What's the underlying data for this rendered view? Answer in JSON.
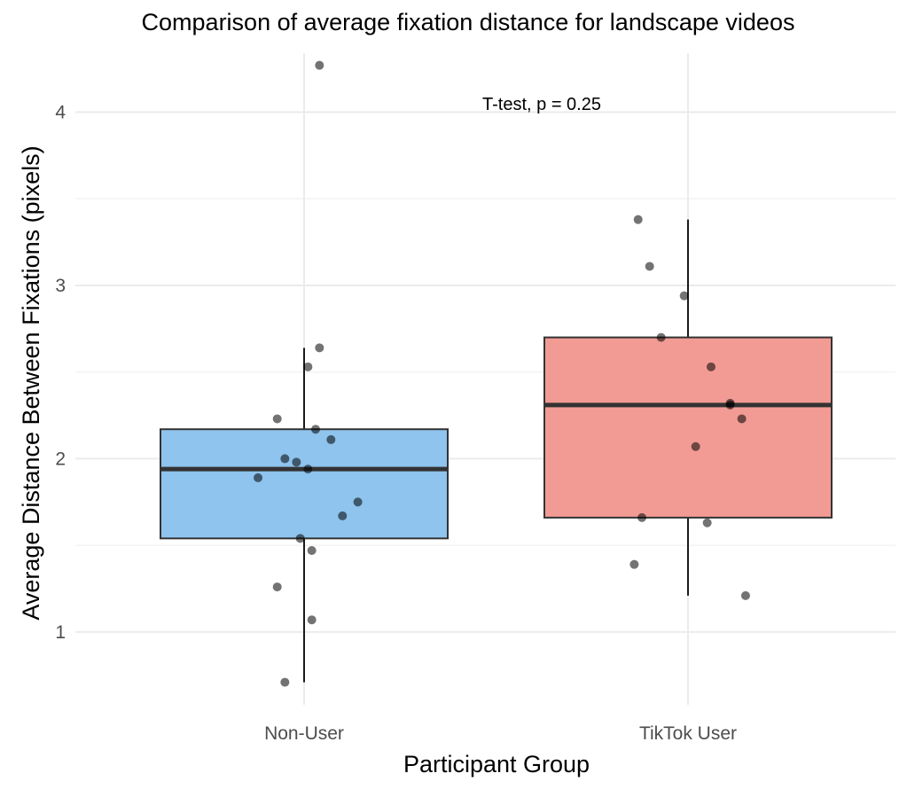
{
  "chart_data": {
    "type": "box",
    "title": "Comparison of average fixation distance for landscape videos",
    "xlabel": "Participant Group",
    "ylabel": "Average Distance Between Fixations (pixels)",
    "categories": [
      "Non-User",
      "TikTok User"
    ],
    "ylim": [
      0.58,
      4.34
    ],
    "yticks": [
      1,
      2,
      3,
      4
    ],
    "grid": true,
    "annotation": "T-test, p = 0.25",
    "colors": {
      "Non-User": "#8ec4ee",
      "TikTok User": "#f29b94"
    },
    "boxes": [
      {
        "category": "Non-User",
        "q1": 1.54,
        "median": 1.94,
        "q3": 2.17,
        "whisker_low": 0.71,
        "whisker_high": 2.64
      },
      {
        "category": "TikTok User",
        "q1": 1.66,
        "median": 2.31,
        "q3": 2.7,
        "whisker_low": 1.21,
        "whisker_high": 3.38
      }
    ],
    "points": [
      {
        "category": "Non-User",
        "jitter": 0.04,
        "y": 4.27
      },
      {
        "category": "Non-User",
        "jitter": 0.04,
        "y": 2.64
      },
      {
        "category": "Non-User",
        "jitter": 0.01,
        "y": 2.53
      },
      {
        "category": "Non-User",
        "jitter": -0.07,
        "y": 2.23
      },
      {
        "category": "Non-User",
        "jitter": 0.03,
        "y": 2.17
      },
      {
        "category": "Non-User",
        "jitter": 0.07,
        "y": 2.11
      },
      {
        "category": "Non-User",
        "jitter": -0.05,
        "y": 2.0
      },
      {
        "category": "Non-User",
        "jitter": -0.02,
        "y": 1.98
      },
      {
        "category": "Non-User",
        "jitter": 0.01,
        "y": 1.94
      },
      {
        "category": "Non-User",
        "jitter": -0.12,
        "y": 1.89
      },
      {
        "category": "Non-User",
        "jitter": 0.14,
        "y": 1.75
      },
      {
        "category": "Non-User",
        "jitter": 0.1,
        "y": 1.67
      },
      {
        "category": "Non-User",
        "jitter": -0.01,
        "y": 1.54
      },
      {
        "category": "Non-User",
        "jitter": 0.02,
        "y": 1.47
      },
      {
        "category": "Non-User",
        "jitter": -0.07,
        "y": 1.26
      },
      {
        "category": "Non-User",
        "jitter": 0.02,
        "y": 1.07
      },
      {
        "category": "Non-User",
        "jitter": -0.05,
        "y": 0.71
      },
      {
        "category": "TikTok User",
        "jitter": -0.13,
        "y": 3.38
      },
      {
        "category": "TikTok User",
        "jitter": -0.1,
        "y": 3.11
      },
      {
        "category": "TikTok User",
        "jitter": -0.01,
        "y": 2.94
      },
      {
        "category": "TikTok User",
        "jitter": -0.07,
        "y": 2.7
      },
      {
        "category": "TikTok User",
        "jitter": 0.06,
        "y": 2.53
      },
      {
        "category": "TikTok User",
        "jitter": 0.11,
        "y": 2.32
      },
      {
        "category": "TikTok User",
        "jitter": 0.11,
        "y": 2.31
      },
      {
        "category": "TikTok User",
        "jitter": 0.14,
        "y": 2.23
      },
      {
        "category": "TikTok User",
        "jitter": 0.02,
        "y": 2.07
      },
      {
        "category": "TikTok User",
        "jitter": -0.12,
        "y": 1.66
      },
      {
        "category": "TikTok User",
        "jitter": 0.05,
        "y": 1.63
      },
      {
        "category": "TikTok User",
        "jitter": -0.14,
        "y": 1.39
      },
      {
        "category": "TikTok User",
        "jitter": 0.15,
        "y": 1.21
      }
    ]
  }
}
